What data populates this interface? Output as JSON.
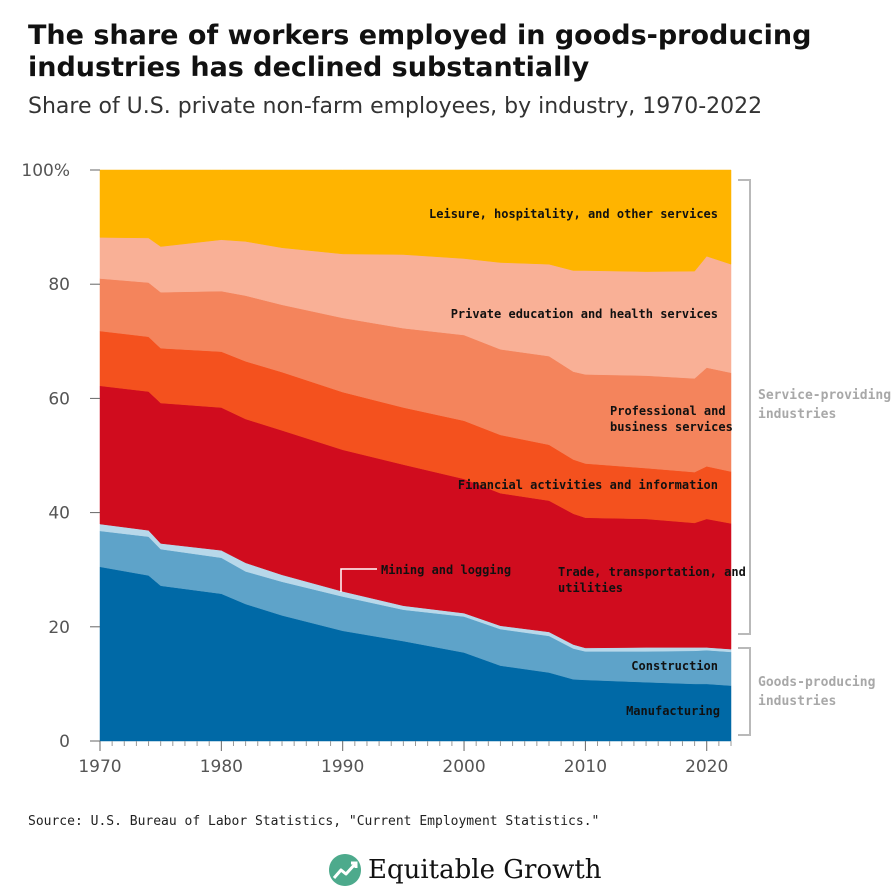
{
  "title": "The share of workers employed in goods-producing industries has declined substantially",
  "subtitle": "Share of U.S. private non-farm employees, by industry, 1970-2022",
  "source": "Source: U.S. Bureau of Labor Statistics, \"Current Employment Statistics.\"",
  "brand": {
    "name": "Equitable Growth",
    "icon": "growth-leaf-logo-icon"
  },
  "chart_data": {
    "type": "area",
    "stacked": true,
    "x": [
      1970,
      1974,
      1975,
      1980,
      1982,
      1985,
      1990,
      1995,
      2000,
      2003,
      2007,
      2009,
      2010,
      2015,
      2019,
      2020,
      2022
    ],
    "xticks": [
      "1970",
      "1980",
      "1990",
      "2000",
      "2010",
      "2020"
    ],
    "yticks": [
      "100%",
      "80",
      "60",
      "40",
      "20",
      "0"
    ],
    "ylim": [
      0,
      100
    ],
    "xlim": [
      1970,
      2022
    ],
    "series": [
      {
        "name": "Manufacturing",
        "color": "#0069a6",
        "values": [
          30.5,
          29.0,
          27.2,
          25.8,
          24.0,
          22.0,
          19.3,
          17.5,
          15.5,
          13.2,
          12.0,
          10.8,
          10.7,
          10.3,
          10.0,
          10.0,
          9.7
        ]
      },
      {
        "name": "Construction",
        "color": "#5ea3c9",
        "values": [
          6.3,
          6.8,
          6.4,
          6.3,
          5.7,
          5.9,
          6.0,
          5.5,
          6.3,
          6.4,
          6.4,
          5.4,
          5.0,
          5.4,
          5.8,
          5.9,
          5.9
        ]
      },
      {
        "name": "Mining and logging",
        "color": "#b8d8ea",
        "values": [
          1.2,
          1.1,
          1.0,
          1.3,
          1.5,
          1.2,
          0.9,
          0.7,
          0.6,
          0.6,
          0.7,
          0.7,
          0.6,
          0.7,
          0.6,
          0.5,
          0.5
        ]
      },
      {
        "name": "Trade, transportation, and utilities",
        "color": "#d00c1e",
        "values": [
          24.2,
          24.3,
          24.6,
          25.0,
          25.2,
          25.3,
          24.8,
          24.7,
          23.5,
          23.2,
          23.0,
          22.9,
          22.8,
          22.5,
          21.8,
          22.5,
          22.0
        ]
      },
      {
        "name": "Financial activities and information",
        "color": "#f4511e",
        "values": [
          9.6,
          9.6,
          9.6,
          9.8,
          10.1,
          10.2,
          10.1,
          10.0,
          10.2,
          10.2,
          9.8,
          9.5,
          9.5,
          8.9,
          8.9,
          9.2,
          9.1
        ]
      },
      {
        "name": "Professional and business services",
        "color": "#f4845c",
        "values": [
          9.2,
          9.5,
          9.8,
          10.6,
          11.5,
          11.8,
          13.0,
          13.9,
          15.0,
          15.0,
          15.5,
          15.4,
          15.6,
          16.2,
          16.4,
          17.3,
          17.3
        ]
      },
      {
        "name": "Private education and health services",
        "color": "#f9b096",
        "values": [
          7.2,
          7.8,
          8.0,
          9.0,
          9.5,
          10.0,
          11.2,
          12.9,
          13.4,
          15.2,
          16.1,
          17.7,
          18.2,
          18.2,
          18.8,
          19.5,
          19.0
        ]
      },
      {
        "name": "Leisure, hospitality, and other services",
        "color": "#ffb400",
        "values": [
          11.8,
          11.9,
          12.4,
          12.2,
          12.5,
          13.6,
          14.7,
          14.8,
          15.5,
          16.2,
          16.5,
          17.6,
          17.6,
          17.8,
          17.7,
          15.1,
          16.5
        ]
      }
    ],
    "series_labels": [
      "Leisure, hospitality, and other services",
      "Private education and health services",
      "Professional and\nbusiness services",
      "Financial activities and information",
      "Trade, transportation, and\nutilities",
      "Mining and logging",
      "Construction",
      "Manufacturing"
    ],
    "brackets": [
      "Service-providing\nindustries",
      "Goods-producing\nindustries"
    ]
  }
}
